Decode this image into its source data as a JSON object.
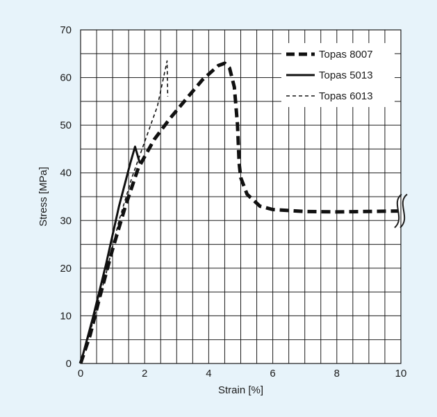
{
  "chart_data": {
    "type": "line",
    "title": "",
    "xlabel": "Strain  [%]",
    "ylabel": "Stress  [MPa]",
    "xlim": [
      0,
      10
    ],
    "ylim": [
      0,
      70
    ],
    "x_ticks": [
      "0",
      "2",
      "4",
      "6",
      "8",
      "10"
    ],
    "y_ticks": [
      "0",
      "10",
      "20",
      "30",
      "40",
      "50",
      "60",
      "70"
    ],
    "grid": true,
    "legend_position": "top-right",
    "axis_break": "right edge at x = 10",
    "series": [
      {
        "name": "Topas 8007",
        "style": "thick-dashed",
        "color": "#111111",
        "points": [
          [
            0,
            0
          ],
          [
            0.3,
            6
          ],
          [
            0.6,
            14
          ],
          [
            1.0,
            24
          ],
          [
            1.4,
            33
          ],
          [
            1.8,
            41
          ],
          [
            2.3,
            47
          ],
          [
            2.8,
            51.5
          ],
          [
            3.3,
            55.5
          ],
          [
            3.8,
            59.5
          ],
          [
            4.3,
            62.5
          ],
          [
            4.5,
            63
          ],
          [
            4.65,
            62
          ],
          [
            4.8,
            58
          ],
          [
            4.9,
            50
          ],
          [
            4.95,
            42
          ],
          [
            5.0,
            39
          ],
          [
            5.2,
            35.5
          ],
          [
            5.6,
            33
          ],
          [
            6.0,
            32.3
          ],
          [
            7.0,
            31.9
          ],
          [
            8.0,
            31.8
          ],
          [
            9.0,
            31.9
          ],
          [
            9.95,
            32
          ]
        ]
      },
      {
        "name": "Topas 5013",
        "style": "solid",
        "color": "#111111",
        "points": [
          [
            0,
            0
          ],
          [
            0.4,
            10
          ],
          [
            0.8,
            21
          ],
          [
            1.2,
            33
          ],
          [
            1.55,
            42
          ],
          [
            1.7,
            45.5
          ],
          [
            1.85,
            42
          ]
        ]
      },
      {
        "name": "Topas 6013",
        "style": "thin-dashed",
        "color": "#111111",
        "points": [
          [
            0,
            0
          ],
          [
            0.4,
            9
          ],
          [
            0.8,
            19
          ],
          [
            1.2,
            30
          ],
          [
            1.6,
            39
          ],
          [
            2.0,
            46.5
          ],
          [
            2.4,
            54
          ],
          [
            2.7,
            63.5
          ],
          [
            2.72,
            56
          ]
        ]
      }
    ]
  }
}
